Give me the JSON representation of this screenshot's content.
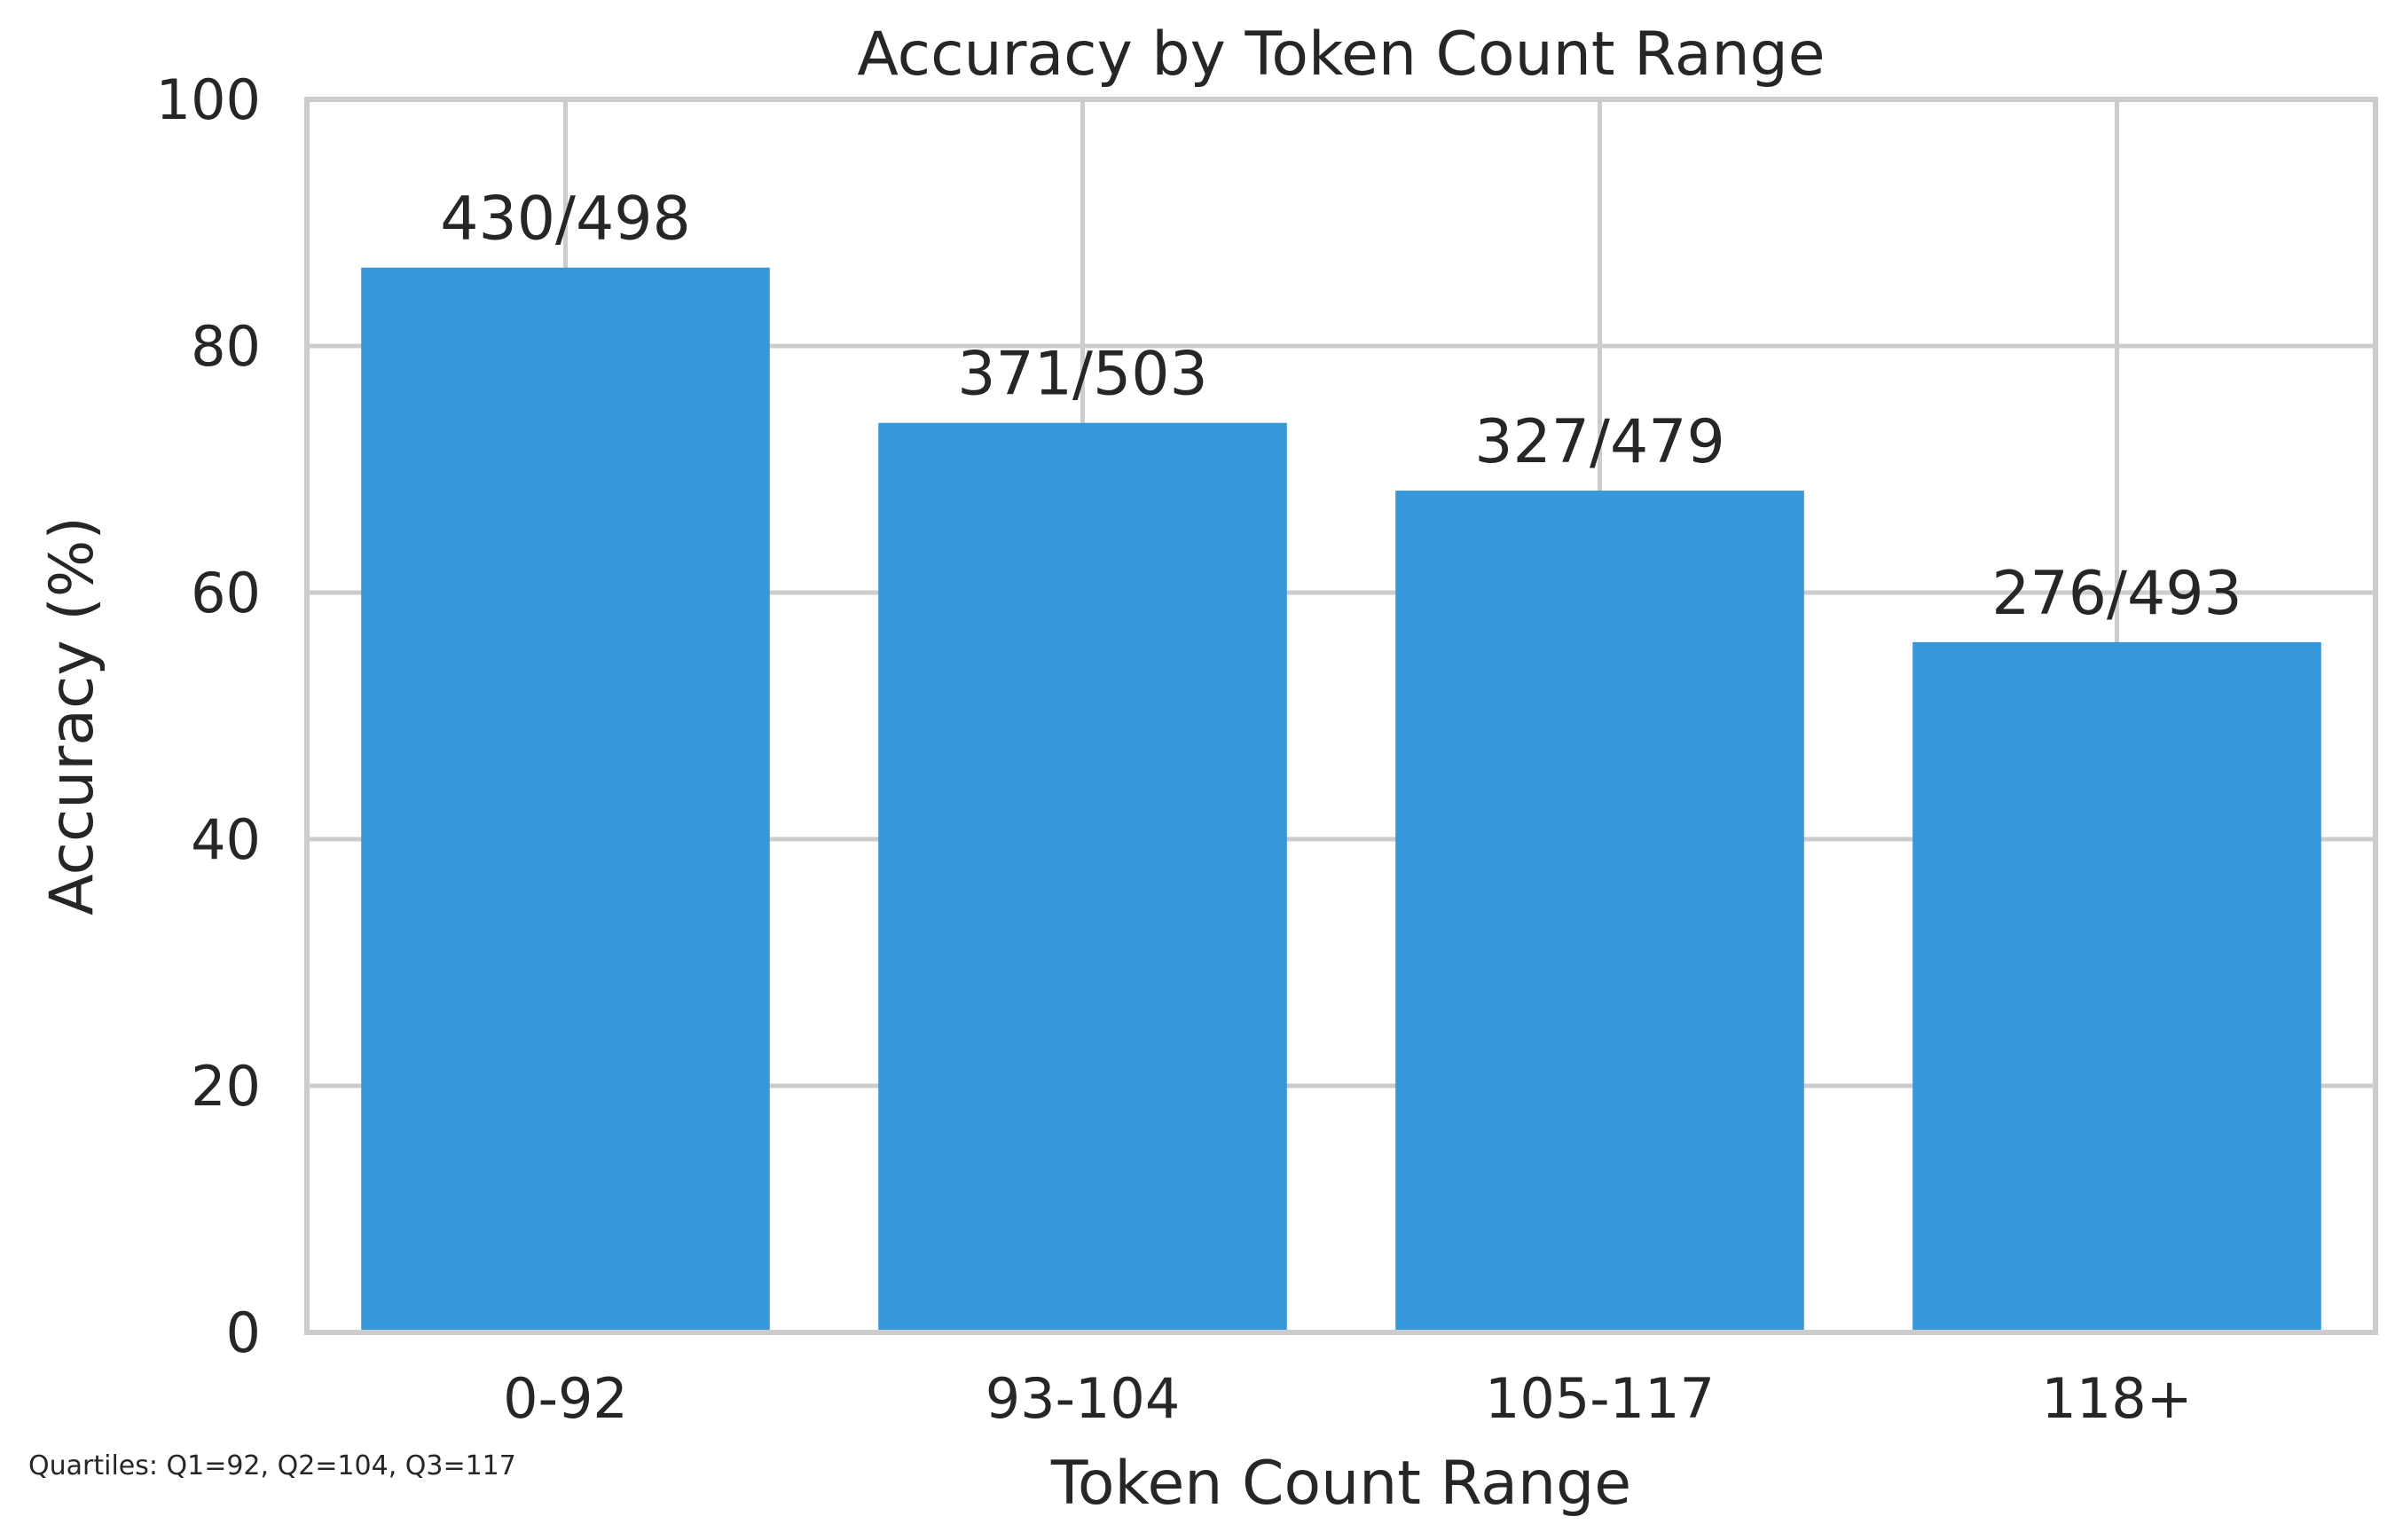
{
  "chart_data": {
    "type": "bar",
    "title": "Accuracy by Token Count Range",
    "xlabel": "Token Count Range",
    "ylabel": "Accuracy (%)",
    "categories": [
      "0-92",
      "93-104",
      "105-117",
      "118+"
    ],
    "values": [
      86.35,
      73.76,
      68.27,
      55.98
    ],
    "data_labels": [
      "430/498",
      "371/503",
      "327/479",
      "276/493"
    ],
    "ylim": [
      0,
      100
    ],
    "yticks": [
      0,
      20,
      40,
      60,
      80,
      100
    ],
    "grid": true,
    "bar_color": "#3797d9",
    "footnote": "Quartiles: Q1=92, Q2=104, Q3=117"
  }
}
